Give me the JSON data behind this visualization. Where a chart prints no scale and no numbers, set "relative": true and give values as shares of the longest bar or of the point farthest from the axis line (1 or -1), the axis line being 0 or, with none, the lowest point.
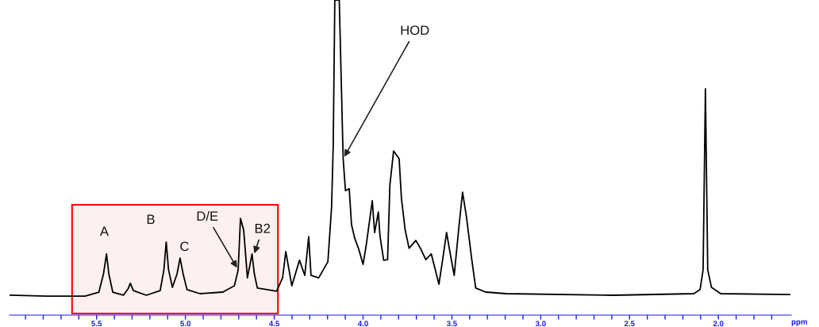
{
  "chart_data": {
    "type": "line",
    "relative": true,
    "xlabel": "ppm",
    "x": [
      5.987,
      5.78,
      5.565,
      5.487,
      5.461,
      5.444,
      5.431,
      5.409,
      5.349,
      5.323,
      5.31,
      5.293,
      5.22,
      5.142,
      5.121,
      5.108,
      5.095,
      5.073,
      5.047,
      5.03,
      5.013,
      4.991,
      4.918,
      4.789,
      4.724,
      4.703,
      4.69,
      4.672,
      4.651,
      4.638,
      4.625,
      4.612,
      4.595,
      4.487,
      4.453,
      4.435,
      4.401,
      4.358,
      4.328,
      4.306,
      4.293,
      4.25,
      4.198,
      4.177,
      4.168,
      4.159,
      4.134,
      4.112,
      4.099,
      4.078,
      4.065,
      4.047,
      4.026,
      4.0,
      3.983,
      3.948,
      3.935,
      3.914,
      3.905,
      3.884,
      3.862,
      3.849,
      3.828,
      3.797,
      3.784,
      3.763,
      3.741,
      3.703,
      3.677,
      3.647,
      3.616,
      3.573,
      3.552,
      3.53,
      3.509,
      3.487,
      3.461,
      3.44,
      3.418,
      3.388,
      3.366,
      3.31,
      3.194,
      2.591,
      2.138,
      2.103,
      2.086,
      2.073,
      2.06,
      2.039,
      1.987,
      1.599
    ],
    "series": [
      {
        "color": "#000000",
        "values": [
          0.063,
          0.06,
          0.06,
          0.073,
          0.131,
          0.194,
          0.131,
          0.073,
          0.063,
          0.083,
          0.101,
          0.078,
          0.063,
          0.078,
          0.144,
          0.232,
          0.144,
          0.088,
          0.131,
          0.181,
          0.131,
          0.081,
          0.068,
          0.073,
          0.093,
          0.144,
          0.307,
          0.27,
          0.118,
          0.156,
          0.194,
          0.131,
          0.086,
          0.076,
          0.118,
          0.202,
          0.093,
          0.174,
          0.126,
          0.249,
          0.126,
          0.118,
          0.169,
          0.345,
          0.539,
          1.0,
          1.0,
          0.496,
          0.395,
          0.401,
          0.287,
          0.244,
          0.212,
          0.161,
          0.219,
          0.363,
          0.262,
          0.327,
          0.252,
          0.174,
          0.176,
          0.413,
          0.521,
          0.496,
          0.37,
          0.27,
          0.212,
          0.237,
          0.212,
          0.176,
          0.194,
          0.098,
          0.176,
          0.262,
          0.194,
          0.126,
          0.277,
          0.39,
          0.312,
          0.176,
          0.086,
          0.073,
          0.068,
          0.063,
          0.068,
          0.081,
          0.144,
          0.718,
          0.144,
          0.088,
          0.068,
          0.065
        ]
      }
    ],
    "xlim": [
      5.99,
      1.59
    ],
    "xticks": [
      {
        "value": 5.9,
        "label": null
      },
      {
        "value": 5.8,
        "label": null
      },
      {
        "value": 5.7,
        "label": null
      },
      {
        "value": 5.6,
        "label": null
      },
      5.5,
      {
        "value": 5.4,
        "label": null
      },
      {
        "value": 5.3,
        "label": null
      },
      {
        "value": 5.2,
        "label": null
      },
      {
        "value": 5.1,
        "label": null
      },
      {
        "value": 5.0,
        "label": "5.0"
      },
      {
        "value": 4.9,
        "label": null
      },
      {
        "value": 4.8,
        "label": null
      },
      {
        "value": 4.7,
        "label": null
      },
      {
        "value": 4.6,
        "label": null
      },
      4.5,
      {
        "value": 4.4,
        "label": null
      },
      {
        "value": 4.3,
        "label": null
      },
      {
        "value": 4.2,
        "label": null
      },
      {
        "value": 4.1,
        "label": null
      },
      {
        "value": 4.0,
        "label": "4.0"
      },
      {
        "value": 3.9,
        "label": null
      },
      {
        "value": 3.8,
        "label": null
      },
      {
        "value": 3.7,
        "label": null
      },
      {
        "value": 3.6,
        "label": null
      },
      3.5,
      {
        "value": 3.4,
        "label": null
      },
      {
        "value": 3.3,
        "label": null
      },
      {
        "value": 3.2,
        "label": null
      },
      {
        "value": 3.1,
        "label": null
      },
      {
        "value": 3.0,
        "label": "3.0"
      },
      {
        "value": 2.9,
        "label": null
      },
      {
        "value": 2.8,
        "label": null
      },
      {
        "value": 2.7,
        "label": null
      },
      {
        "value": 2.6,
        "label": null
      },
      2.5,
      {
        "value": 2.4,
        "label": null
      },
      {
        "value": 2.3,
        "label": null
      },
      {
        "value": 2.2,
        "label": null
      },
      {
        "value": 2.1,
        "label": null
      },
      {
        "value": 2.0,
        "label": "2.0"
      },
      {
        "value": 1.9,
        "label": null
      },
      {
        "value": 1.8,
        "label": null
      },
      {
        "value": 1.7,
        "label": null
      }
    ],
    "tick_labels": "x",
    "grid": false,
    "marker": "none",
    "line_style": "solid",
    "bands": [
      {
        "axis": "x",
        "from": 5.638,
        "to": 4.479,
        "color": "#ff0000"
      }
    ],
    "annotations": [
      {
        "text": "A",
        "x": 5.444,
        "y": 0.194
      },
      {
        "text": "B",
        "x": 5.108,
        "y": 0.232
      },
      {
        "text": "C",
        "x": 5.03,
        "y": 0.181
      },
      {
        "text": "D/E",
        "x": 4.703,
        "y": 0.144
      },
      {
        "text": "B2",
        "x": 4.616,
        "y": 0.189
      },
      {
        "text": "HOD",
        "x": 4.112,
        "y": 0.496
      }
    ]
  }
}
